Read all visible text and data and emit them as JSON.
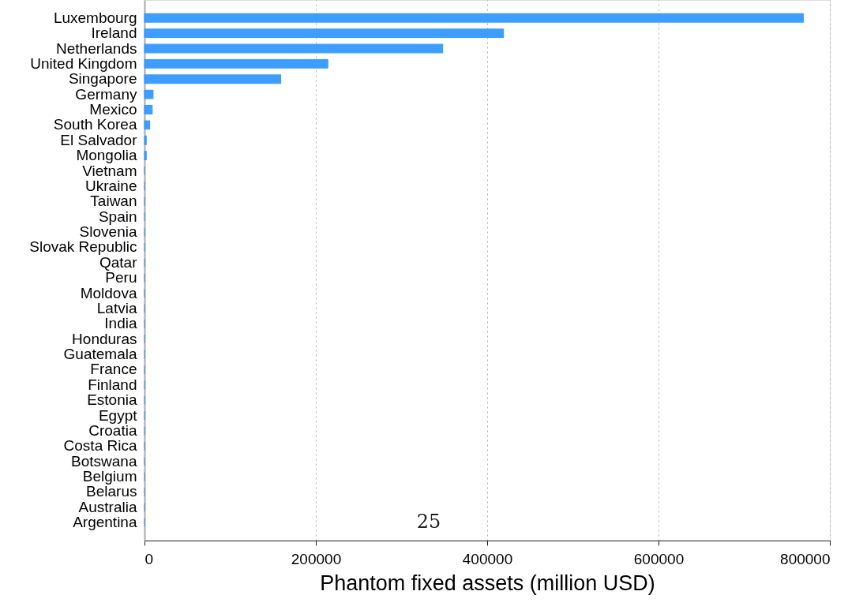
{
  "chart_data": {
    "type": "bar",
    "orientation": "horizontal",
    "xlabel": "Phantom fixed assets (million USD)",
    "categories": [
      "Luxembourg",
      "Ireland",
      "Netherlands",
      "United Kingdom",
      "Singapore",
      "Germany",
      "Mexico",
      "South Korea",
      "El Salvador",
      "Mongolia",
      "Vietnam",
      "Ukraine",
      "Taiwan",
      "Spain",
      "Slovenia",
      "Slovak Republic",
      "Qatar",
      "Peru",
      "Moldova",
      "Latvia",
      "India",
      "Honduras",
      "Guatemala",
      "France",
      "Finland",
      "Estonia",
      "Egypt",
      "Croatia",
      "Costa Rica",
      "Botswana",
      "Belgium",
      "Belarus",
      "Australia",
      "Argentina"
    ],
    "values": [
      769000,
      419000,
      348000,
      214000,
      159000,
      10000,
      9000,
      6000,
      2000,
      2000,
      0,
      0,
      0,
      0,
      0,
      0,
      0,
      0,
      0,
      0,
      0,
      0,
      0,
      0,
      0,
      0,
      0,
      0,
      0,
      0,
      0,
      0,
      0,
      0
    ],
    "color": "#3399ff",
    "xlim": [
      0,
      800000
    ],
    "xticks": [
      0,
      200000,
      400000,
      600000,
      800000
    ],
    "grid": "x",
    "annotations": [
      "25"
    ]
  }
}
